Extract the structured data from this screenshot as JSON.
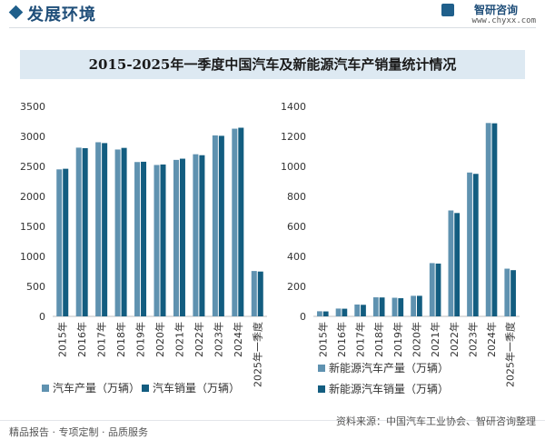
{
  "header": {
    "section_title": "发展环境",
    "brand_name": "智研咨询",
    "brand_url": "www.chyxx.com"
  },
  "colors": {
    "production": "#5f92b0",
    "sales": "#135d80",
    "title_band": "#dde9f2"
  },
  "footer": {
    "left_text": "精品报告 · 专项定制 · 品质服务",
    "source": "资料来源：中国汽车工业协会、智研咨询整理"
  },
  "chart_data": [
    {
      "type": "bar",
      "title": "2015-2025年一季度中国汽车及新能源汽车产销量统计情况",
      "categories": [
        "2015年",
        "2016年",
        "2017年",
        "2018年",
        "2019年",
        "2020年",
        "2021年",
        "2022年",
        "2023年",
        "2024年",
        "2025年一季度"
      ],
      "ylim": [
        0,
        3500
      ],
      "yticks": [
        0,
        500,
        1000,
        1500,
        2000,
        2500,
        3000,
        3500
      ],
      "grid": false,
      "legend_position": "bottom",
      "series": [
        {
          "name": "汽车产量（万辆）",
          "values": [
            2450,
            2812,
            2902,
            2781,
            2572,
            2523,
            2608,
            2702,
            3016,
            3128,
            756
          ]
        },
        {
          "name": "汽车销量（万辆）",
          "values": [
            2460,
            2803,
            2888,
            2808,
            2577,
            2531,
            2628,
            2686,
            3009,
            3144,
            747
          ]
        }
      ]
    },
    {
      "type": "bar",
      "categories": [
        "2015年",
        "2016年",
        "2017年",
        "2018年",
        "2019年",
        "2020年",
        "2021年",
        "2022年",
        "2023年",
        "2024年",
        "2025年一季度"
      ],
      "ylim": [
        0,
        1400
      ],
      "yticks": [
        0,
        200,
        400,
        600,
        800,
        1000,
        1200,
        1400
      ],
      "grid": false,
      "legend_position": "bottom",
      "series": [
        {
          "name": "新能源汽车产量（万辆）",
          "values": [
            34,
            52,
            79,
            127,
            124,
            137,
            355,
            706,
            959,
            1289,
            318
          ]
        },
        {
          "name": "新能源汽车销量（万辆）",
          "values": [
            33,
            51,
            77,
            126,
            121,
            137,
            352,
            689,
            950,
            1287,
            308
          ]
        }
      ]
    }
  ]
}
